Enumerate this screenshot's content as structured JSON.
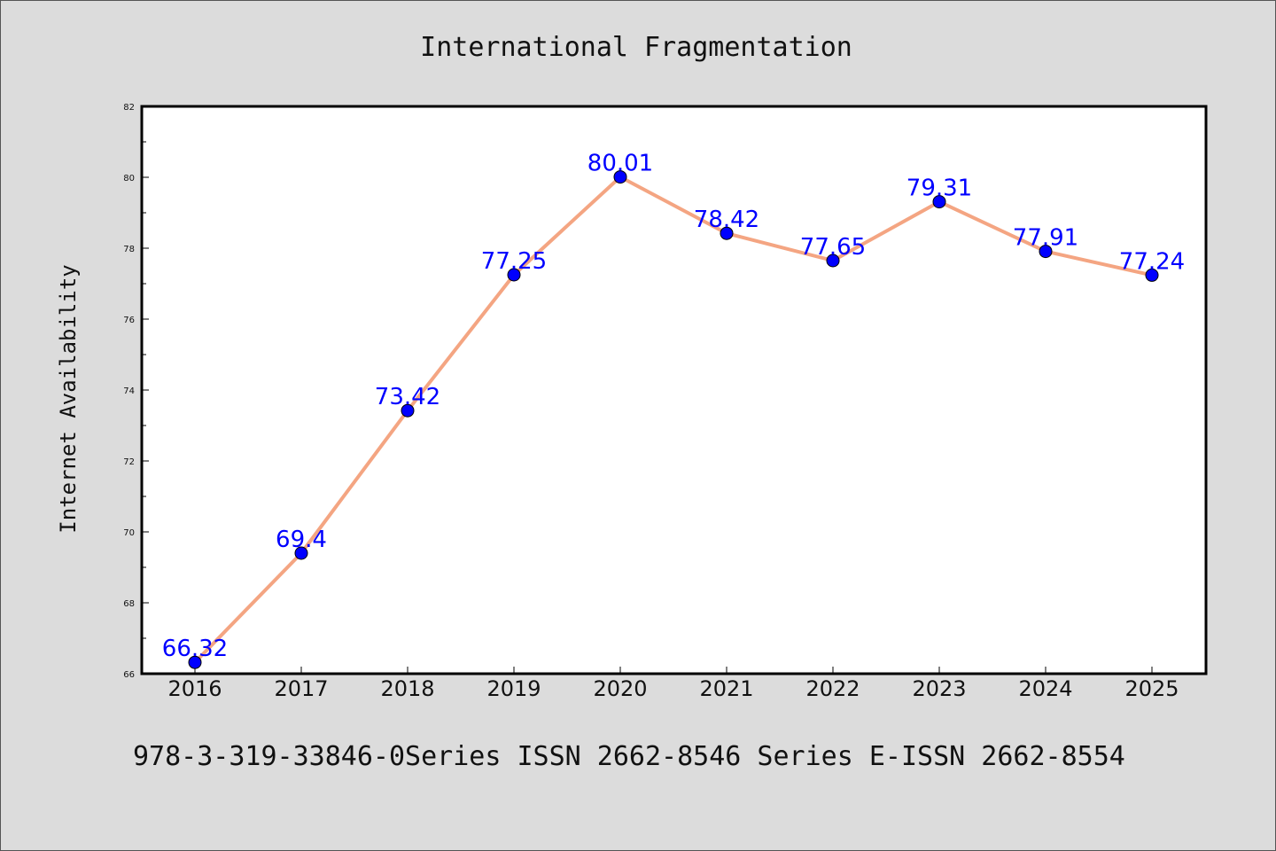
{
  "chart_data": {
    "type": "line",
    "title": "International Fragmentation",
    "ylabel": "Internet Availability",
    "xlabel": "",
    "x": [
      "2016",
      "2017",
      "2018",
      "2019",
      "2020",
      "2021",
      "2022",
      "2023",
      "2024",
      "2025"
    ],
    "series": [
      {
        "values": [
          66.32,
          69.4,
          73.42,
          77.25,
          80.01,
          78.42,
          77.65,
          79.31,
          77.91,
          77.24
        ],
        "labels": [
          "66.32",
          "69.4",
          "73.42",
          "77.25",
          "80.01",
          "78.42",
          "77.65",
          "79.31",
          "77.91",
          "77.24"
        ]
      }
    ],
    "ylim": [
      66,
      82
    ],
    "yticks": [
      "66",
      "68",
      "70",
      "72",
      "74",
      "76",
      "78",
      "80",
      "82"
    ],
    "grid": false,
    "legend": "none",
    "colors": {
      "line": "#f4a582",
      "marker": "#0000ff",
      "label": "#0000ff",
      "background": "#dcdcdc",
      "plot_background": "#ffffff"
    }
  },
  "footnote": "978-3-319-33846-0Series ISSN 2662-8546 Series E-ISSN 2662-8554"
}
